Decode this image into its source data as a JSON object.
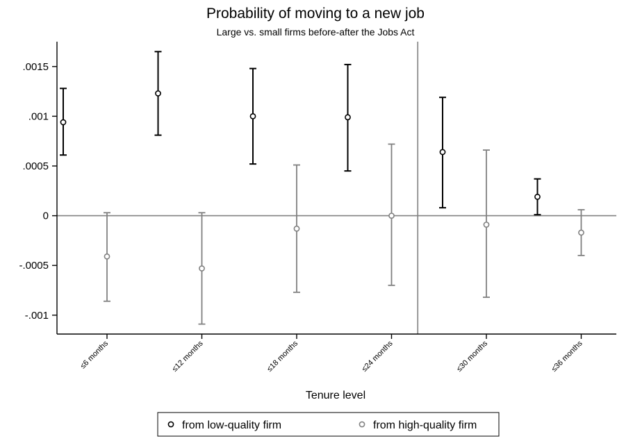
{
  "chart_data": {
    "type": "scatter",
    "title": "Probability of moving to a new job",
    "subtitle": "Large vs. small firms before-after the Jobs Act",
    "xlabel": "Tenure level",
    "ylabel": "",
    "categories": [
      "≤6 months",
      "≤12 months",
      "≤18 months",
      "≤24 months",
      "≤30 months",
      "≤36 months"
    ],
    "yticks": [
      -0.001,
      -0.0005,
      0,
      0.0005,
      0.001,
      0.0015
    ],
    "ytick_labels": [
      "-.001",
      "-.0005",
      "0",
      ".0005",
      ".001",
      ".0015"
    ],
    "ylim": [
      -0.00119,
      0.00175
    ],
    "grid": false,
    "reference_lines": {
      "y": 0,
      "x_between_categories": [
        "≤24 months",
        "≤30 months"
      ]
    },
    "legend_position": "bottom",
    "series": [
      {
        "name": "from low-quality firm",
        "color": "#000000",
        "points": [
          {
            "category": "≤6 months",
            "estimate": 0.00094,
            "ci_low": 0.00061,
            "ci_high": 0.00128
          },
          {
            "category": "≤12 months",
            "estimate": 0.00123,
            "ci_low": 0.00081,
            "ci_high": 0.00165
          },
          {
            "category": "≤18 months",
            "estimate": 0.001,
            "ci_low": 0.00052,
            "ci_high": 0.00148
          },
          {
            "category": "≤24 months",
            "estimate": 0.00099,
            "ci_low": 0.00045,
            "ci_high": 0.00152
          },
          {
            "category": "≤30 months",
            "estimate": 0.00064,
            "ci_low": 8e-05,
            "ci_high": 0.00119
          },
          {
            "category": "≤36 months",
            "estimate": 0.00019,
            "ci_low": 1e-05,
            "ci_high": 0.00037
          }
        ]
      },
      {
        "name": "from high-quality firm",
        "color": "#808080",
        "points": [
          {
            "category": "≤6 months",
            "estimate": -0.00041,
            "ci_low": -0.00086,
            "ci_high": 3e-05
          },
          {
            "category": "≤12 months",
            "estimate": -0.00053,
            "ci_low": -0.00109,
            "ci_high": 3e-05
          },
          {
            "category": "≤18 months",
            "estimate": -0.00013,
            "ci_low": -0.00077,
            "ci_high": 0.00051
          },
          {
            "category": "≤24 months",
            "estimate": 0.0,
            "ci_low": -0.0007,
            "ci_high": 0.00072
          },
          {
            "category": "≤30 months",
            "estimate": -9e-05,
            "ci_low": -0.00082,
            "ci_high": 0.00066
          },
          {
            "category": "≤36 months",
            "estimate": -0.00017,
            "ci_low": -0.0004,
            "ci_high": 6e-05
          }
        ]
      }
    ]
  }
}
